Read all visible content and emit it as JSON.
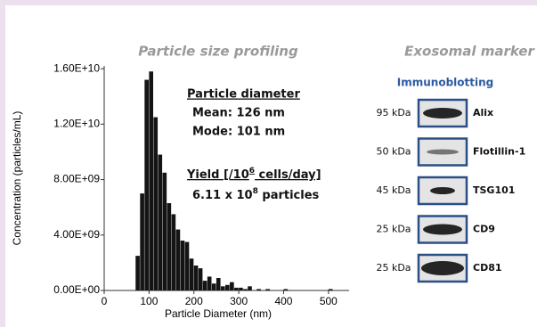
{
  "chart_data": {
    "type": "histogram",
    "title": "Particle size profiling",
    "xlabel": "Particle Diameter (nm)",
    "ylabel": "Concentration (particles/mL)",
    "color": "#141414",
    "bins": [
      70,
      80,
      90,
      100,
      110,
      120,
      130,
      140,
      150,
      160,
      170,
      180,
      190,
      200,
      210,
      220,
      230,
      240,
      250,
      260,
      270,
      280,
      290,
      300,
      310,
      320,
      330,
      340,
      350,
      360,
      370,
      380,
      390,
      400,
      410,
      420,
      430,
      440,
      450,
      460,
      470,
      480,
      490,
      500,
      510,
      520
    ],
    "values": [
      2500000000,
      7000000000,
      15200000000,
      15800000000,
      12500000000,
      9800000000,
      8500000000,
      6300000000,
      5500000000,
      4400000000,
      3600000000,
      3500000000,
      2300000000,
      1800000000,
      1600000000,
      700000000,
      1000000000,
      500000000,
      900000000,
      300000000,
      400000000,
      600000000,
      200000000,
      200000000,
      100000000,
      300000000,
      0,
      100000000,
      0,
      100000000,
      0,
      0,
      0,
      100000000,
      0,
      0,
      0,
      0,
      0,
      0,
      0,
      0,
      0,
      100000000,
      0
    ],
    "xlim": [
      0,
      540
    ],
    "xticks": [
      0,
      100,
      200,
      300,
      400,
      500
    ],
    "ylim": [
      0,
      16200000000
    ],
    "yticks": [
      {
        "value": 0,
        "label": "0.00E+00"
      },
      {
        "value": 4000000000,
        "label": "4.00E+09"
      },
      {
        "value": 8000000000,
        "label": "8.00E+09"
      },
      {
        "value": 12000000000,
        "label": "1.20E+10"
      },
      {
        "value": 16000000000,
        "label": "1.60E+10"
      }
    ],
    "annotations": {
      "heading": "Particle diameter",
      "mean": "Mean: 126 nm",
      "mode": "Mode: 101 nm",
      "yield": [
        "Yield [/10",
        "6",
        " cells/day]"
      ],
      "particles": [
        "6.11 x 10",
        "8",
        " particles"
      ]
    }
  },
  "blot": {
    "title": "Exosomal marker",
    "subtitle": "Immunoblotting",
    "rows": [
      {
        "size": "95 kDa",
        "name": "Alix"
      },
      {
        "size": "50 kDa",
        "name": "Flotillin-1"
      },
      {
        "size": "45 kDa",
        "name": "TSG101"
      },
      {
        "size": "25 kDa",
        "name": "CD9"
      },
      {
        "size": "25 kDa",
        "name": "CD81"
      }
    ]
  }
}
